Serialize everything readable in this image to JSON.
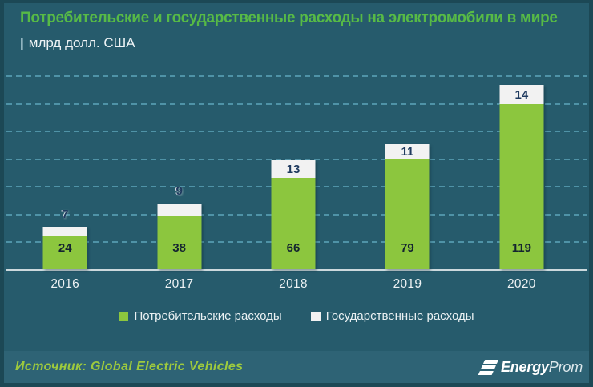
{
  "header": {
    "title": "Потребительские и государственные расходы на электромобили в мире",
    "unit_pipe": "|",
    "unit": "млрд долл. США"
  },
  "footer": {
    "source": "Источник: Global Electric Vehicles",
    "logo_bold": "Energy",
    "logo_light": "Prom"
  },
  "legend": {
    "items": [
      {
        "label": "Потребительские расходы",
        "color": "#8cc63e"
      },
      {
        "label": "Государственные расходы",
        "color": "#f2f2f2"
      }
    ]
  },
  "colors": {
    "background": "#265b6c",
    "frame_border": "#1c4855",
    "footer_band": "#2e6375",
    "gridline": "#4f93a7",
    "axis_line": "#ccd9dd",
    "title_green": "#57ba46",
    "source_green": "#9eca3d",
    "bar_green": "#8cc63e",
    "bar_white": "#f2f2f2",
    "label_dark": "#1f3a5f",
    "text_light": "#eef3f5"
  },
  "chart_data": {
    "type": "bar",
    "stacked": true,
    "title": "Потребительские и государственные расходы на электромобили в мире",
    "ylabel": "млрд долл. США",
    "categories": [
      "2016",
      "2017",
      "2018",
      "2019",
      "2020"
    ],
    "series": [
      {
        "name": "Потребительские расходы",
        "color": "#8cc63e",
        "values": [
          24,
          38,
          66,
          79,
          119
        ]
      },
      {
        "name": "Государственные расходы",
        "color": "#f2f2f2",
        "values": [
          7,
          9,
          13,
          11,
          14
        ]
      }
    ],
    "totals": [
      31,
      47,
      79,
      90,
      133
    ],
    "ylim": [
      0,
      140
    ],
    "gridline_step": 20,
    "grid": true,
    "y_tick_labels_visible": false,
    "legend_position": "bottom",
    "source": "Global Electric Vehicles"
  }
}
